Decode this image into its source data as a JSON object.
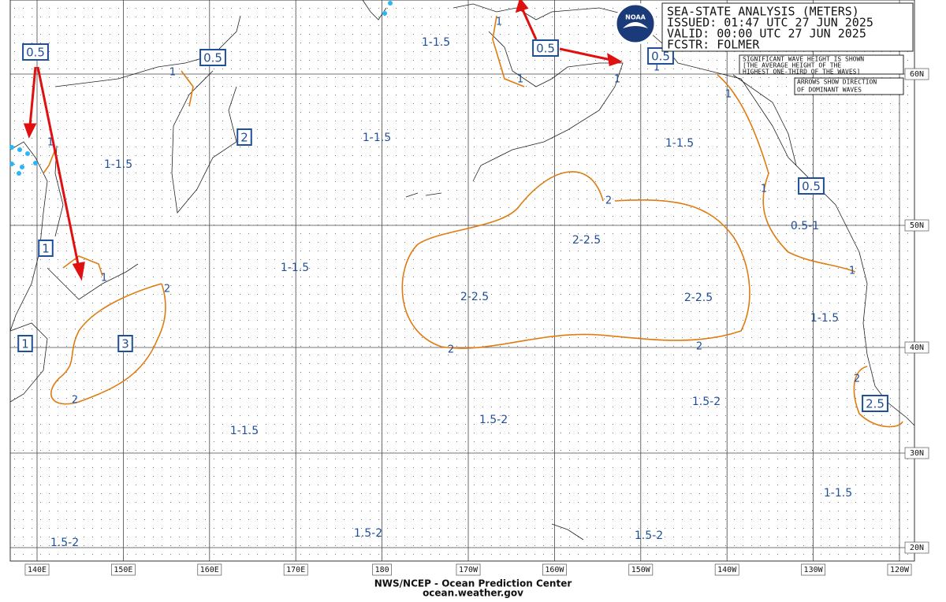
{
  "header": {
    "title": "SEA-STATE ANALYSIS (METERS)",
    "issued": "ISSUED: 01:47 UTC 27 JUN 2025",
    "valid": "VALID:  00:00 UTC 27 JUN 2025",
    "forecaster": "FCSTR: FOLMER"
  },
  "logo": "NOAA",
  "notes": [
    "SIGNIFICANT WAVE HEIGHT IS SHOWN",
    "[THE AVERAGE HEIGHT OF THE",
    "HIGHEST ONE-THIRD OF THE WAVES]",
    "ARROWS SHOW DIRECTION",
    "OF DOMINANT WAVES"
  ],
  "longitude_labels": [
    "140E",
    "150E",
    "160E",
    "170E",
    "180",
    "170W",
    "160W",
    "150W",
    "140W",
    "130W",
    "120W"
  ],
  "latitude_labels": [
    "60N",
    "50N",
    "40N",
    "30N",
    "20N"
  ],
  "region_labels": [
    "1-1.5",
    "1-1.5",
    "1-1.5",
    "1-1.5",
    "1-1.5",
    "2-2.5",
    "2-2.5",
    "2-2.5",
    "0.5-1",
    "1-1.5",
    "1.5-2",
    "1.5-2",
    "1-1.5",
    "1-1.5",
    "1.5-2",
    "1.5-2",
    "1.5-2"
  ],
  "contour_labels": [
    "1",
    "1",
    "1",
    "1",
    "1",
    "1",
    "1",
    "1",
    "1",
    "1",
    "2",
    "2",
    "2",
    "2",
    "2",
    "2"
  ],
  "boxed_labels": [
    "0.5",
    "0.5",
    "2",
    "0.5",
    "0.5",
    "0.5",
    "1",
    "1",
    "3",
    "2.5"
  ],
  "footer": {
    "agency": "NWS/NCEP - Ocean Prediction Center",
    "url": "ocean.weather.gov"
  }
}
